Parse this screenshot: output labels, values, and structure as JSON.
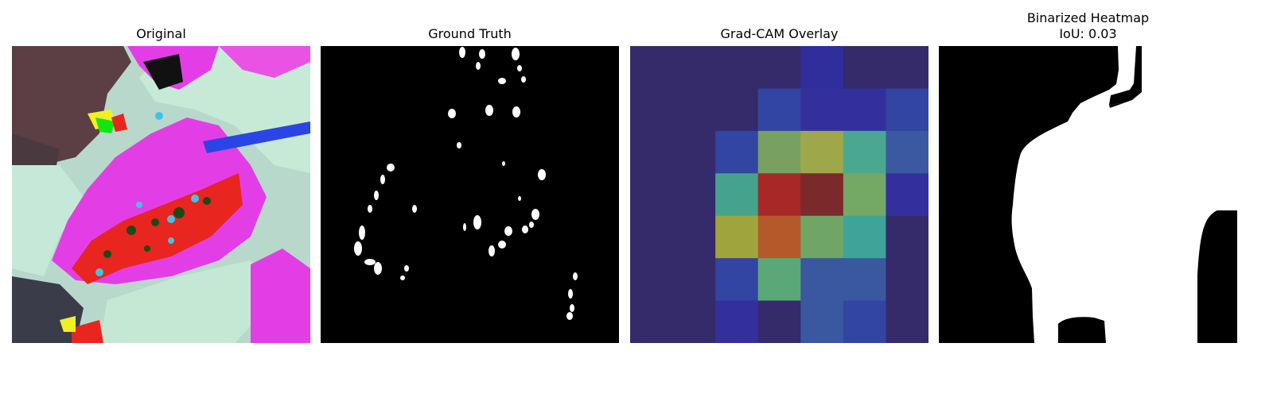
{
  "panels": [
    {
      "title": "Original",
      "subtitle": ""
    },
    {
      "title": "Ground Truth",
      "subtitle": ""
    },
    {
      "title": "Grad-CAM Overlay",
      "subtitle": ""
    },
    {
      "title": "Binarized Heatmap",
      "subtitle": "IoU: 0.03"
    }
  ],
  "heatmap": {
    "grid": [
      [
        "#352a6a",
        "#352a6a",
        "#352a6a",
        "#352a6a",
        "#2f2e9c",
        "#352a6a",
        "#352a6a"
      ],
      [
        "#352a6a",
        "#352a6a",
        "#352a6a",
        "#3245a2",
        "#33309e",
        "#33309e",
        "#3245a2"
      ],
      [
        "#352a6a",
        "#352a6a",
        "#3245a2",
        "#78a060",
        "#9ea84a",
        "#4aa890",
        "#3b59a0"
      ],
      [
        "#352a6a",
        "#352a6a",
        "#46a38b",
        "#a82828",
        "#7a2a2a",
        "#73a865",
        "#33309e"
      ],
      [
        "#352a6a",
        "#352a6a",
        "#a0a43c",
        "#b45a2a",
        "#6fa665",
        "#3ea49a",
        "#352a6a"
      ],
      [
        "#352a6a",
        "#352a6a",
        "#3245a2",
        "#5aa878",
        "#3a58a0",
        "#3a58a0",
        "#352a6a"
      ],
      [
        "#352a6a",
        "#352a6a",
        "#33309e",
        "#352a6a",
        "#3a58a0",
        "#3245a2",
        "#352a6a"
      ]
    ]
  },
  "colors": {
    "background": "#ffffff",
    "mask_fg": "#ffffff",
    "mask_bg": "#000000",
    "leaf_magenta": "#e33ee6",
    "lesion_red": "#e8251f",
    "pale_green": "#c4e6d2"
  }
}
